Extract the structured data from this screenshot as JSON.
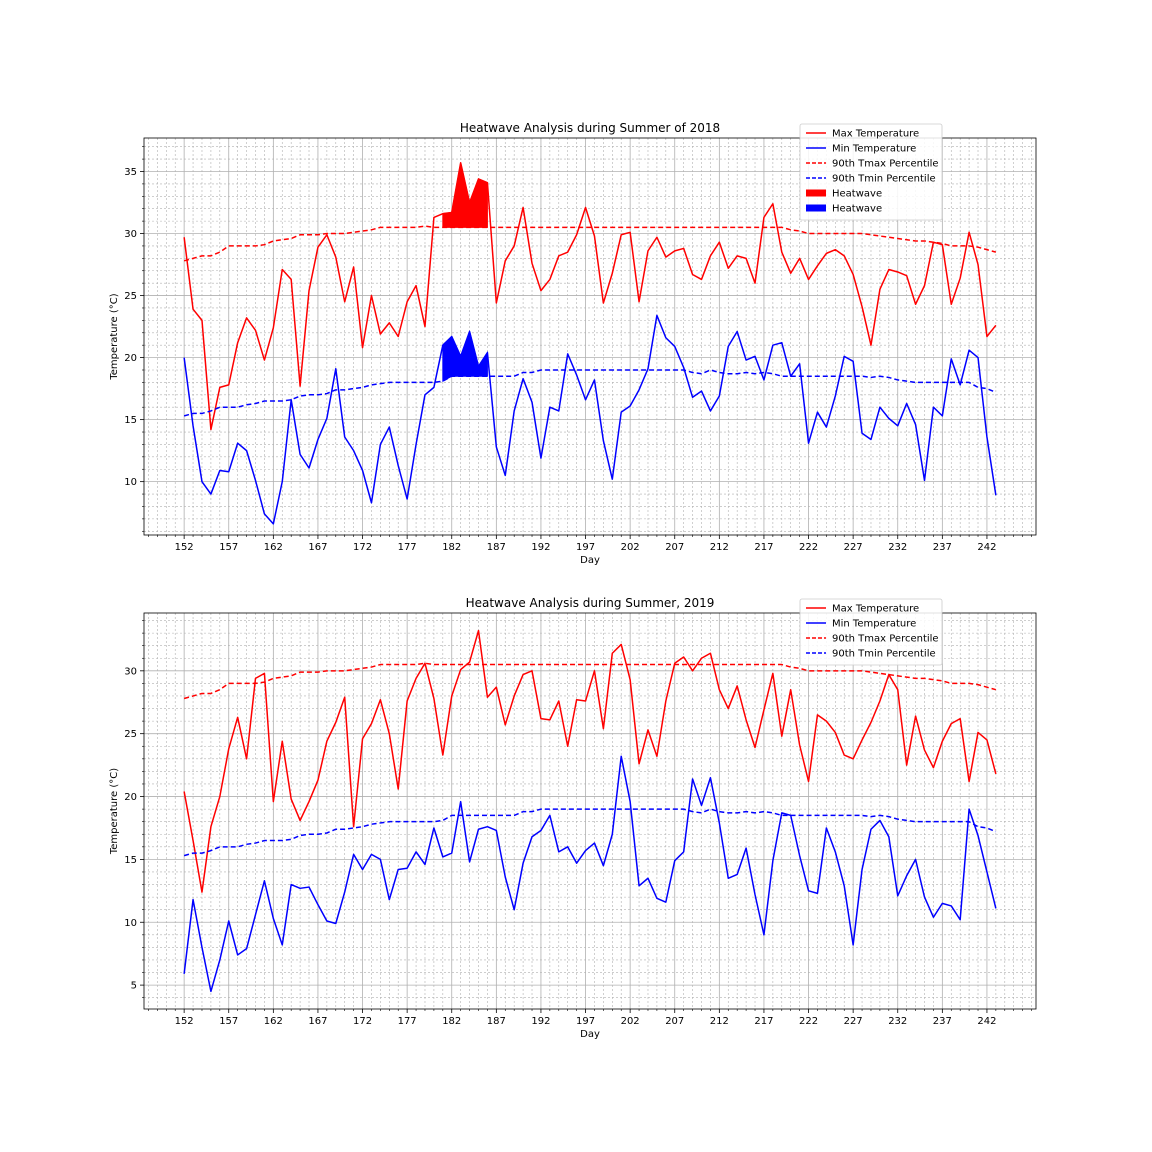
{
  "colors": {
    "max": "#ff0000",
    "min": "#0000ff",
    "grid": "#b0b0b0"
  },
  "chart_data": [
    {
      "type": "line",
      "title": "Heatwave Analysis during Summer of 2018",
      "xlabel": "Day",
      "ylabel": "Temperature (°C)",
      "xlim": [
        147.5,
        247.5
      ],
      "ylim": [
        5.7,
        37.7
      ],
      "xticks": [
        152,
        157,
        162,
        167,
        172,
        177,
        182,
        187,
        192,
        197,
        202,
        207,
        212,
        217,
        222,
        227,
        232,
        237,
        242
      ],
      "yticks": [
        10,
        15,
        20,
        25,
        30,
        35
      ],
      "grid": true,
      "legend_position": "upper right",
      "x_start": 152,
      "series": [
        {
          "name": "Max Temperature",
          "style": "solid",
          "color": "#ff0000",
          "values": [
            29.7,
            23.9,
            23.0,
            14.2,
            17.6,
            17.8,
            21.2,
            23.2,
            22.2,
            19.8,
            22.4,
            27.1,
            26.3,
            17.7,
            25.4,
            28.9,
            29.9,
            28.1,
            24.5,
            27.3,
            20.8,
            25.0,
            21.9,
            22.8,
            21.7,
            24.5,
            25.8,
            22.5,
            31.3,
            31.6,
            31.7,
            35.7,
            32.5,
            34.4,
            34.1,
            24.4,
            27.8,
            29.0,
            32.1,
            27.6,
            25.4,
            26.3,
            28.2,
            28.5,
            29.9,
            32.1,
            29.8,
            24.4,
            26.8,
            29.9,
            30.1,
            24.5,
            28.6,
            29.7,
            28.1,
            28.6,
            28.8,
            26.7,
            26.3,
            28.2,
            29.3,
            27.2,
            28.2,
            28.0,
            26.0,
            31.3,
            32.4,
            28.5,
            26.8,
            28.0,
            26.3,
            27.4,
            28.4,
            28.7,
            28.2,
            26.7,
            24.1,
            21.0,
            25.5,
            27.1,
            26.9,
            26.6,
            24.3,
            25.8,
            29.3,
            29.1,
            24.3,
            26.4,
            30.1,
            27.5,
            21.7,
            22.6
          ]
        },
        {
          "name": "Min Temperature",
          "style": "solid",
          "color": "#0000ff",
          "values": [
            20.0,
            14.5,
            10.0,
            9.0,
            10.9,
            10.8,
            13.1,
            12.5,
            10.1,
            7.4,
            6.6,
            10.0,
            16.6,
            12.2,
            11.1,
            13.4,
            15.1,
            19.1,
            13.6,
            12.5,
            10.9,
            8.3,
            13.0,
            14.4,
            11.3,
            8.6,
            13.0,
            17.0,
            17.6,
            21.0,
            21.7,
            20.1,
            22.1,
            19.3,
            20.4,
            12.8,
            10.5,
            15.7,
            18.3,
            16.4,
            11.9,
            16.0,
            15.7,
            20.3,
            18.6,
            16.6,
            18.2,
            13.3,
            10.2,
            15.6,
            16.1,
            17.4,
            19.1,
            23.4,
            21.6,
            20.9,
            19.2,
            16.8,
            17.3,
            15.7,
            16.9,
            20.9,
            22.1,
            19.8,
            20.1,
            18.2,
            21.0,
            21.2,
            18.5,
            19.5,
            13.1,
            15.6,
            14.4,
            16.9,
            20.1,
            19.7,
            13.9,
            13.4,
            16.0,
            15.1,
            14.5,
            16.3,
            14.6,
            10.1,
            16.0,
            15.3,
            19.9,
            17.8,
            20.6,
            20.0,
            13.6,
            8.9
          ]
        },
        {
          "name": "90th Tmax Percentile",
          "style": "dashed",
          "color": "#ff0000",
          "values": [
            27.8,
            28.0,
            28.2,
            28.2,
            28.5,
            29.0,
            29.0,
            29.0,
            29.0,
            29.1,
            29.4,
            29.5,
            29.6,
            29.9,
            29.9,
            29.9,
            30.0,
            30.0,
            30.0,
            30.1,
            30.2,
            30.3,
            30.5,
            30.5,
            30.5,
            30.5,
            30.5,
            30.6,
            30.5,
            30.5,
            30.5,
            30.5,
            30.5,
            30.5,
            30.5,
            30.5,
            30.5,
            30.5,
            30.5,
            30.5,
            30.5,
            30.5,
            30.5,
            30.5,
            30.5,
            30.5,
            30.5,
            30.5,
            30.5,
            30.5,
            30.5,
            30.5,
            30.5,
            30.5,
            30.5,
            30.5,
            30.5,
            30.5,
            30.5,
            30.5,
            30.5,
            30.5,
            30.5,
            30.5,
            30.5,
            30.5,
            30.5,
            30.5,
            30.3,
            30.2,
            30.0,
            30.0,
            30.0,
            30.0,
            30.0,
            30.0,
            30.0,
            29.9,
            29.8,
            29.7,
            29.6,
            29.5,
            29.4,
            29.4,
            29.3,
            29.2,
            29.0,
            29.0,
            29.0,
            28.9,
            28.7,
            28.5
          ]
        },
        {
          "name": "90th Tmin Percentile",
          "style": "dashed",
          "color": "#0000ff",
          "values": [
            15.3,
            15.5,
            15.5,
            15.7,
            16.0,
            16.0,
            16.0,
            16.2,
            16.3,
            16.5,
            16.5,
            16.5,
            16.6,
            16.9,
            17.0,
            17.0,
            17.1,
            17.4,
            17.4,
            17.5,
            17.6,
            17.8,
            17.9,
            18.0,
            18.0,
            18.0,
            18.0,
            18.0,
            18.0,
            18.1,
            18.5,
            18.5,
            18.5,
            18.5,
            18.5,
            18.5,
            18.5,
            18.5,
            18.8,
            18.8,
            19.0,
            19.0,
            19.0,
            19.0,
            19.0,
            19.0,
            19.0,
            19.0,
            19.0,
            19.0,
            19.0,
            19.0,
            19.0,
            19.0,
            19.0,
            19.0,
            19.0,
            18.8,
            18.7,
            19.0,
            18.8,
            18.7,
            18.7,
            18.8,
            18.7,
            18.8,
            18.7,
            18.5,
            18.5,
            18.5,
            18.5,
            18.5,
            18.5,
            18.5,
            18.5,
            18.5,
            18.5,
            18.4,
            18.5,
            18.4,
            18.2,
            18.1,
            18.0,
            18.0,
            18.0,
            18.0,
            18.0,
            18.0,
            18.0,
            17.6,
            17.5,
            17.2
          ]
        }
      ],
      "heatwave_fills": [
        {
          "name": "Heatwave",
          "color": "#ff0000",
          "of_series": 0,
          "baseline_series": 2,
          "from_day": 181,
          "to_day": 186
        },
        {
          "name": "Heatwave",
          "color": "#0000ff",
          "of_series": 1,
          "baseline_series": 3,
          "from_day": 181,
          "to_day": 186
        }
      ]
    },
    {
      "type": "line",
      "title": "Heatwave Analysis during Summer, 2019",
      "xlabel": "Day",
      "ylabel": "Temperature (°C)",
      "xlim": [
        147.5,
        247.5
      ],
      "ylim": [
        3.1,
        34.6
      ],
      "xticks": [
        152,
        157,
        162,
        167,
        172,
        177,
        182,
        187,
        192,
        197,
        202,
        207,
        212,
        217,
        222,
        227,
        232,
        237,
        242
      ],
      "yticks": [
        5,
        10,
        15,
        20,
        25,
        30
      ],
      "grid": true,
      "legend_position": "upper right",
      "x_start": 152,
      "series": [
        {
          "name": "Max Temperature",
          "style": "solid",
          "color": "#ff0000",
          "values": [
            20.4,
            16.5,
            12.4,
            17.6,
            20.0,
            23.8,
            26.3,
            23.0,
            29.4,
            29.8,
            19.6,
            24.4,
            19.8,
            18.1,
            19.6,
            21.3,
            24.4,
            25.9,
            27.9,
            17.6,
            24.6,
            25.8,
            27.7,
            25.0,
            20.6,
            27.6,
            29.4,
            30.6,
            27.8,
            23.3,
            28.0,
            30.1,
            30.7,
            33.2,
            27.9,
            28.7,
            25.7,
            28.0,
            29.7,
            30.0,
            26.2,
            26.1,
            27.6,
            24.0,
            27.7,
            27.6,
            30.0,
            25.4,
            31.4,
            32.1,
            29.3,
            22.6,
            25.3,
            23.2,
            27.6,
            30.6,
            31.1,
            30.0,
            31.0,
            31.4,
            28.5,
            27.0,
            28.8,
            26.1,
            23.9,
            26.9,
            29.8,
            24.8,
            28.5,
            24.1,
            21.2,
            26.5,
            26.0,
            25.1,
            23.3,
            23.0,
            24.5,
            25.9,
            27.6,
            29.7,
            28.5,
            22.5,
            26.4,
            23.7,
            22.3,
            24.4,
            25.8,
            26.2,
            21.2,
            25.1,
            24.5,
            21.8
          ]
        },
        {
          "name": "Min Temperature",
          "style": "solid",
          "color": "#0000ff",
          "values": [
            5.9,
            11.8,
            8.0,
            4.5,
            7.0,
            10.1,
            7.4,
            7.9,
            10.6,
            13.3,
            10.3,
            8.2,
            13.0,
            12.7,
            12.8,
            11.4,
            10.1,
            9.9,
            12.4,
            15.4,
            14.2,
            15.4,
            15.0,
            11.8,
            14.2,
            14.3,
            15.6,
            14.6,
            17.5,
            15.2,
            15.5,
            19.6,
            14.8,
            17.4,
            17.6,
            17.3,
            13.6,
            11.0,
            14.7,
            16.8,
            17.3,
            18.5,
            15.6,
            16.0,
            14.7,
            15.7,
            16.3,
            14.5,
            17.0,
            23.2,
            19.6,
            12.9,
            13.5,
            11.9,
            11.6,
            14.9,
            15.6,
            21.4,
            19.3,
            21.5,
            17.9,
            13.5,
            13.8,
            15.9,
            12.2,
            9.0,
            14.9,
            18.7,
            18.5,
            15.3,
            12.5,
            12.3,
            17.5,
            15.6,
            12.9,
            8.2,
            14.2,
            17.4,
            18.1,
            16.8,
            12.1,
            13.7,
            15.0,
            12.0,
            10.4,
            11.5,
            11.3,
            10.2,
            19.0,
            16.9,
            14.0,
            11.1
          ]
        },
        {
          "name": "90th Tmax Percentile",
          "style": "dashed",
          "color": "#ff0000",
          "values": [
            27.8,
            28.0,
            28.2,
            28.2,
            28.5,
            29.0,
            29.0,
            29.0,
            29.0,
            29.1,
            29.4,
            29.5,
            29.6,
            29.9,
            29.9,
            29.9,
            30.0,
            30.0,
            30.0,
            30.1,
            30.2,
            30.3,
            30.5,
            30.5,
            30.5,
            30.5,
            30.5,
            30.6,
            30.5,
            30.5,
            30.5,
            30.5,
            30.5,
            30.5,
            30.5,
            30.5,
            30.5,
            30.5,
            30.5,
            30.5,
            30.5,
            30.5,
            30.5,
            30.5,
            30.5,
            30.5,
            30.5,
            30.5,
            30.5,
            30.5,
            30.5,
            30.5,
            30.5,
            30.5,
            30.5,
            30.5,
            30.5,
            30.5,
            30.5,
            30.5,
            30.5,
            30.5,
            30.5,
            30.5,
            30.5,
            30.5,
            30.5,
            30.5,
            30.3,
            30.2,
            30.0,
            30.0,
            30.0,
            30.0,
            30.0,
            30.0,
            30.0,
            29.9,
            29.8,
            29.7,
            29.6,
            29.5,
            29.4,
            29.4,
            29.3,
            29.2,
            29.0,
            29.0,
            29.0,
            28.9,
            28.7,
            28.5
          ]
        },
        {
          "name": "90th Tmin Percentile",
          "style": "dashed",
          "color": "#0000ff",
          "values": [
            15.3,
            15.5,
            15.5,
            15.7,
            16.0,
            16.0,
            16.0,
            16.2,
            16.3,
            16.5,
            16.5,
            16.5,
            16.6,
            16.9,
            17.0,
            17.0,
            17.1,
            17.4,
            17.4,
            17.5,
            17.6,
            17.8,
            17.9,
            18.0,
            18.0,
            18.0,
            18.0,
            18.0,
            18.0,
            18.1,
            18.5,
            18.5,
            18.5,
            18.5,
            18.5,
            18.5,
            18.5,
            18.5,
            18.8,
            18.8,
            19.0,
            19.0,
            19.0,
            19.0,
            19.0,
            19.0,
            19.0,
            19.0,
            19.0,
            19.0,
            19.0,
            19.0,
            19.0,
            19.0,
            19.0,
            19.0,
            19.0,
            18.8,
            18.7,
            19.0,
            18.8,
            18.7,
            18.7,
            18.8,
            18.7,
            18.8,
            18.7,
            18.5,
            18.5,
            18.5,
            18.5,
            18.5,
            18.5,
            18.5,
            18.5,
            18.5,
            18.5,
            18.4,
            18.5,
            18.4,
            18.2,
            18.1,
            18.0,
            18.0,
            18.0,
            18.0,
            18.0,
            18.0,
            18.0,
            17.6,
            17.5,
            17.2
          ]
        }
      ],
      "heatwave_fills": []
    }
  ]
}
